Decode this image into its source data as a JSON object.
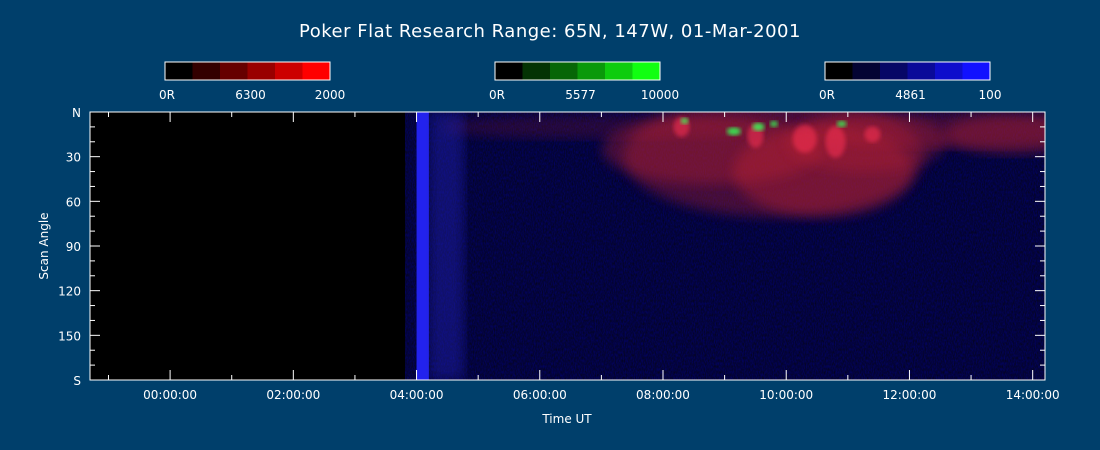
{
  "chart_data": {
    "type": "heatmap",
    "title": "Poker Flat Research Range: 65N, 147W, 01-Mar-2001",
    "xlabel": "Time UT",
    "ylabel": "Scan Angle",
    "x_ticks": [
      "00:00:00",
      "02:00:00",
      "04:00:00",
      "06:00:00",
      "08:00:00",
      "10:00:00",
      "12:00:00",
      "14:00:00"
    ],
    "y_ticks": [
      "N",
      "30",
      "60",
      "90",
      "120",
      "150",
      "S"
    ],
    "xlim_hours": [
      -1.3,
      14.2
    ],
    "ylim_deg": [
      0,
      180
    ],
    "colorbars": [
      {
        "name": "6300",
        "min_label": "0R",
        "max_label": "2000",
        "color": "#ff0000",
        "steps": 6
      },
      {
        "name": "5577",
        "min_label": "0R",
        "max_label": "10000",
        "color": "#11ff11",
        "steps": 6
      },
      {
        "name": "4861",
        "min_label": "0R",
        "max_label": "100",
        "color": "#1111ff",
        "steps": 6
      }
    ],
    "features": {
      "data_start_hour": 4.0,
      "blue_band_hours": [
        4.0,
        4.2
      ],
      "red_aurora_hours": [
        8.0,
        12.0
      ],
      "green_arcs_hours": [
        8.3,
        11.2
      ]
    }
  }
}
